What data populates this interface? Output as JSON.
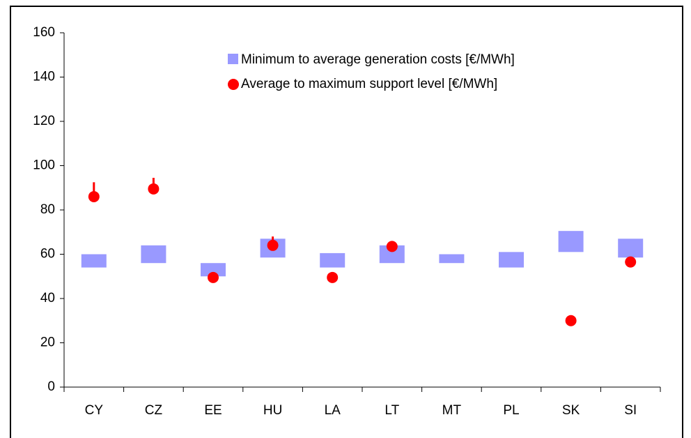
{
  "chart_data": {
    "type": "range-dot",
    "categories": [
      "CY",
      "CZ",
      "EE",
      "HU",
      "LA",
      "LT",
      "MT",
      "PL",
      "SK",
      "SI"
    ],
    "series": [
      {
        "name": "Minimum to average generation costs [€/MWh]",
        "color": "#9999ff",
        "low": [
          54,
          56,
          50,
          58.5,
          54,
          56,
          56,
          54,
          61,
          58.5
        ],
        "high": [
          60,
          64,
          56,
          67,
          60.5,
          64,
          60,
          61,
          70.5,
          67
        ]
      },
      {
        "name": "Average to maximum support level [€/MWh]",
        "color": "#ff0000",
        "values": [
          86,
          89.5,
          49.5,
          64,
          49.5,
          63.5,
          null,
          null,
          30,
          56.5
        ],
        "high": [
          92.5,
          94.5,
          null,
          68,
          null,
          null,
          null,
          null,
          null,
          null
        ]
      }
    ],
    "ylim": [
      0,
      160
    ],
    "yticks": [
      0,
      20,
      40,
      60,
      80,
      100,
      120,
      140,
      160
    ],
    "grid": false
  }
}
